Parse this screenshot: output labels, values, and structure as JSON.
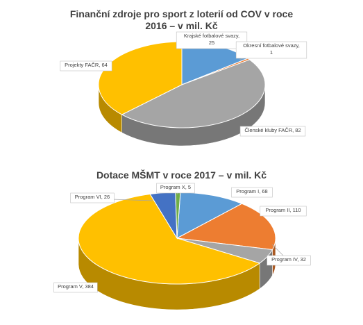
{
  "chart_data": [
    {
      "type": "pie",
      "title": "Finanční zdroje pro sport z loterií od COV v roce 2016 – v mil. Kč",
      "slices": [
        {
          "label": "Krajské fotbalové svazy, 25",
          "name": "Krajské fotbalové svazy",
          "value": 25,
          "color": "#5b9bd5"
        },
        {
          "label": "Okresní fotbalové svazy, 1",
          "name": "Okresní fotbalové svazy",
          "value": 1,
          "color": "#ed7d31"
        },
        {
          "label": "Členské kluby FAČR, 82",
          "name": "Členské kluby FAČR",
          "value": 82,
          "color": "#a5a5a5"
        },
        {
          "label": "Projekty FAČR, 64",
          "name": "Projekty FAČR",
          "value": 64,
          "color": "#ffc000"
        }
      ]
    },
    {
      "type": "pie",
      "title": "Dotace MŠMT v roce 2017 – v mil. Kč",
      "slices": [
        {
          "label": "Program I, 68",
          "name": "Program I",
          "value": 68,
          "color": "#5b9bd5"
        },
        {
          "label": "Program II, 110",
          "name": "Program II",
          "value": 110,
          "color": "#ed7d31"
        },
        {
          "label": "Program IV, 32",
          "name": "Program IV",
          "value": 32,
          "color": "#a5a5a5"
        },
        {
          "label": "Program V, 384",
          "name": "Program V",
          "value": 384,
          "color": "#ffc000"
        },
        {
          "label": "Program VI, 26",
          "name": "Program VI",
          "value": 26,
          "color": "#4472c4"
        },
        {
          "label": "Program X, 5",
          "name": "Program X",
          "value": 5,
          "color": "#70ad47"
        }
      ]
    }
  ]
}
